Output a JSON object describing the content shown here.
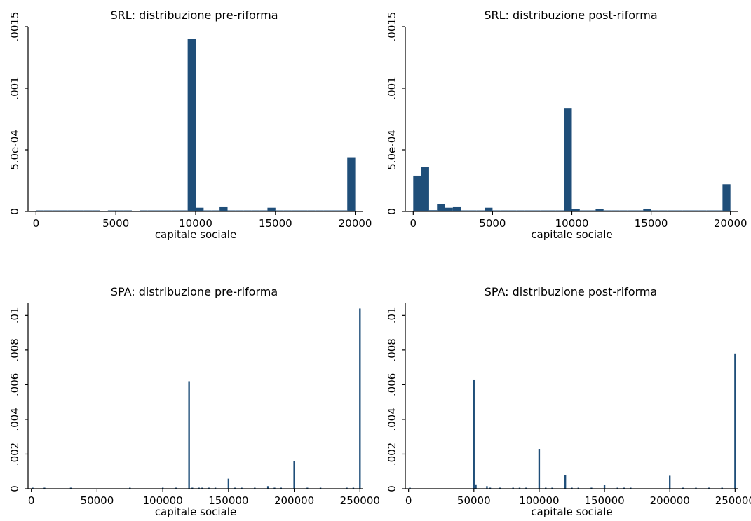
{
  "colors": {
    "bar": "#1f4e79",
    "axis": "#000000",
    "background": "#ffffff"
  },
  "chart_data": [
    {
      "type": "bar",
      "title": "SRL: distribuzione pre-riforma",
      "xlabel": "capitale sociale",
      "ylabel": "",
      "xlim": [
        -500,
        20500
      ],
      "ylim": [
        0,
        0.0015
      ],
      "x_ticks": [
        0,
        5000,
        10000,
        15000,
        20000
      ],
      "x_tick_labels": [
        "0",
        "5000",
        "10000",
        "15000",
        "20000"
      ],
      "y_ticks": [
        0,
        0.0005,
        0.001,
        0.0015
      ],
      "y_tick_labels": [
        "0",
        "5.0e-04",
        ".001",
        ".0015"
      ],
      "bar_width": 500,
      "x": [
        250,
        750,
        1250,
        1750,
        2250,
        2750,
        3250,
        3750,
        4750,
        5250,
        5750,
        6750,
        7250,
        7750,
        8250,
        8750,
        9250,
        9750,
        10250,
        10750,
        11250,
        11750,
        12250,
        12750,
        13250,
        13750,
        14250,
        14750,
        15250,
        15750,
        16250,
        16750,
        17250,
        17750,
        18250,
        18750,
        19250,
        19750
      ],
      "values": [
        5e-06,
        5e-06,
        5e-06,
        5e-06,
        5e-06,
        5e-06,
        5e-06,
        5e-06,
        5e-06,
        5e-06,
        5e-06,
        5e-06,
        5e-06,
        5e-06,
        5e-06,
        5e-06,
        5e-06,
        0.0014,
        3e-05,
        5e-06,
        5e-06,
        4e-05,
        5e-06,
        5e-06,
        5e-06,
        5e-06,
        5e-06,
        3e-05,
        5e-06,
        5e-06,
        5e-06,
        5e-06,
        5e-06,
        5e-06,
        5e-06,
        5e-06,
        5e-06,
        0.00044
      ],
      "grid": false,
      "legend": "none"
    },
    {
      "type": "bar",
      "title": "SRL: distribuzione post-riforma",
      "xlabel": "capitale sociale",
      "ylabel": "",
      "xlim": [
        -500,
        20500
      ],
      "ylim": [
        0,
        0.0015
      ],
      "x_ticks": [
        0,
        5000,
        10000,
        15000,
        20000
      ],
      "x_tick_labels": [
        "0",
        "5000",
        "10000",
        "15000",
        "20000"
      ],
      "y_ticks": [
        0,
        0.0005,
        0.001,
        0.0015
      ],
      "y_tick_labels": [
        "0",
        "5.0e-04",
        ".001",
        ".0015"
      ],
      "bar_width": 500,
      "x": [
        250,
        750,
        1250,
        1750,
        2250,
        2750,
        3250,
        3750,
        4250,
        4750,
        5250,
        5750,
        6250,
        6750,
        7250,
        7750,
        8250,
        8750,
        9250,
        9750,
        10250,
        10750,
        11250,
        11750,
        12250,
        12750,
        13250,
        13750,
        14250,
        14750,
        15250,
        15750,
        16250,
        16750,
        17250,
        17750,
        18250,
        18750,
        19250,
        19750
      ],
      "values": [
        0.00029,
        0.00036,
        1e-05,
        6e-05,
        3e-05,
        4e-05,
        5e-06,
        5e-06,
        5e-06,
        3e-05,
        5e-06,
        5e-06,
        5e-06,
        5e-06,
        5e-06,
        5e-06,
        5e-06,
        5e-06,
        5e-06,
        0.00084,
        2e-05,
        5e-06,
        5e-06,
        2e-05,
        5e-06,
        5e-06,
        5e-06,
        5e-06,
        5e-06,
        2e-05,
        5e-06,
        5e-06,
        5e-06,
        5e-06,
        5e-06,
        5e-06,
        5e-06,
        5e-06,
        5e-06,
        0.00022
      ],
      "grid": false,
      "legend": "none"
    },
    {
      "type": "bar",
      "title": "SPA: distribuzione pre-riforma",
      "xlabel": "capitale sociale",
      "ylabel": "",
      "xlim": [
        -2500,
        252500
      ],
      "ylim": [
        0,
        0.0107
      ],
      "x_ticks": [
        0,
        50000,
        100000,
        150000,
        200000,
        250000
      ],
      "x_tick_labels": [
        "0",
        "50000",
        "100000",
        "150000",
        "200000",
        "250000"
      ],
      "y_ticks": [
        0,
        0.002,
        0.004,
        0.006,
        0.008,
        0.01
      ],
      "y_tick_labels": [
        "0",
        ".002",
        ".004",
        ".006",
        ".008",
        ".01"
      ],
      "bar_width": 1250,
      "x": [
        1000,
        10000,
        30000,
        75000,
        100000,
        110000,
        120000,
        122500,
        127500,
        130000,
        135000,
        140000,
        150000,
        155000,
        160000,
        170000,
        180000,
        185000,
        190000,
        200000,
        210000,
        220000,
        240000,
        245000,
        250000
      ],
      "values": [
        4e-05,
        4e-05,
        3e-05,
        3e-05,
        4e-05,
        4e-05,
        0.0062,
        5e-05,
        4e-05,
        4e-05,
        4e-05,
        4e-05,
        0.00058,
        4e-05,
        5e-05,
        4e-05,
        0.00015,
        4e-05,
        4e-05,
        0.0016,
        4e-05,
        4e-05,
        5e-05,
        4e-05,
        0.0104
      ],
      "grid": false,
      "legend": "none"
    },
    {
      "type": "bar",
      "title": "SPA: distribuzione post-riforma",
      "xlabel": "capitale sociale",
      "ylabel": "",
      "xlim": [
        -2500,
        252500
      ],
      "ylim": [
        0,
        0.0107
      ],
      "x_ticks": [
        0,
        50000,
        100000,
        150000,
        200000,
        250000
      ],
      "x_tick_labels": [
        "0",
        "50000",
        "100000",
        "150000",
        "200000",
        "250000"
      ],
      "y_ticks": [
        0,
        0.002,
        0.004,
        0.006,
        0.008,
        0.01
      ],
      "y_tick_labels": [
        "0",
        ".002",
        ".004",
        ".006",
        ".008",
        ".01"
      ],
      "bar_width": 1250,
      "x": [
        1000,
        50000,
        51500,
        60000,
        62500,
        70000,
        80000,
        85000,
        90000,
        100000,
        105000,
        110000,
        120000,
        125000,
        130000,
        140000,
        150000,
        160000,
        165000,
        170000,
        200000,
        210000,
        220000,
        230000,
        240000,
        250000
      ],
      "values": [
        4e-05,
        0.0063,
        0.00025,
        0.00015,
        5e-05,
        4e-05,
        4e-05,
        4e-05,
        4e-05,
        0.0023,
        4e-05,
        4e-05,
        0.0008,
        4e-05,
        4e-05,
        4e-05,
        0.00022,
        4e-05,
        4e-05,
        4e-05,
        0.00075,
        4e-05,
        4e-05,
        4e-05,
        4e-05,
        0.0078
      ],
      "grid": false,
      "legend": "none"
    }
  ]
}
